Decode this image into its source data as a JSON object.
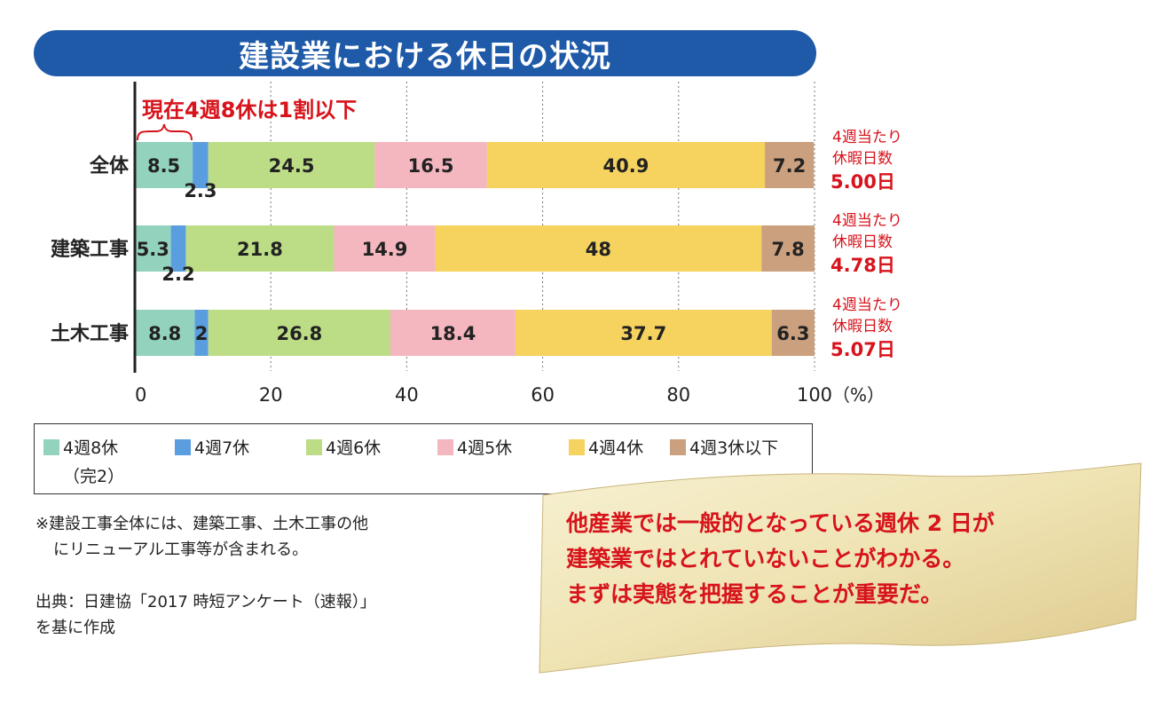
{
  "title": "建設業における休日の状況",
  "chart_data": {
    "type": "bar",
    "orientation": "horizontal",
    "stacked": true,
    "categories": [
      "全体",
      "建築工事",
      "土木工事"
    ],
    "series": [
      {
        "name": "4週8休（完2）",
        "color": "#93d3be",
        "values": [
          8.5,
          5.3,
          8.8
        ]
      },
      {
        "name": "4週7休",
        "color": "#5b9ee0",
        "values": [
          2.3,
          2.2,
          2
        ]
      },
      {
        "name": "4週6休",
        "color": "#bcdd86",
        "values": [
          24.5,
          21.8,
          26.8
        ]
      },
      {
        "name": "4週5休",
        "color": "#f4b6bf",
        "values": [
          16.5,
          14.9,
          18.4
        ]
      },
      {
        "name": "4週4休",
        "color": "#f6d25e",
        "values": [
          40.9,
          48,
          37.7
        ]
      },
      {
        "name": "4週3休以下",
        "color": "#caa07e",
        "values": [
          7.2,
          7.8,
          6.3
        ]
      }
    ],
    "xlim": [
      0,
      100
    ],
    "x_ticks": [
      "0",
      "20",
      "40",
      "60",
      "80",
      "100"
    ],
    "x_unit": "（%）",
    "grid": "vertical dotted",
    "annotation": "現在4週8休は1割以下",
    "side_notes": [
      {
        "line1": "4週当たり",
        "line2": "休暇日数",
        "value": "5.00日"
      },
      {
        "line1": "4週当たり",
        "line2": "休暇日数",
        "value": "4.78日"
      },
      {
        "line1": "4週当たり",
        "line2": "休暇日数",
        "value": "5.07日"
      }
    ]
  },
  "legend": {
    "items": [
      "4週8休",
      "4週7休",
      "4週6休",
      "4週5休",
      "4週4休",
      "4週3休以下"
    ],
    "sub": "（完2）"
  },
  "notes": {
    "line1": "※建設工事全体には、建築工事、土木工事の他",
    "line2": "にリニューアル工事等が含まれる。",
    "source1": "出典：日建協「2017 時短アンケート（速報）」",
    "source2": "を基に作成"
  },
  "banner": {
    "line1": "他産業では一般的となっている週休 2 日が",
    "line2": "建築業ではとれていないことがわかる。",
    "line3": "まずは実態を把握することが重要だ。"
  },
  "colors": {
    "title_bg": "#1e5aa8",
    "accent_red": "#d7131b"
  }
}
